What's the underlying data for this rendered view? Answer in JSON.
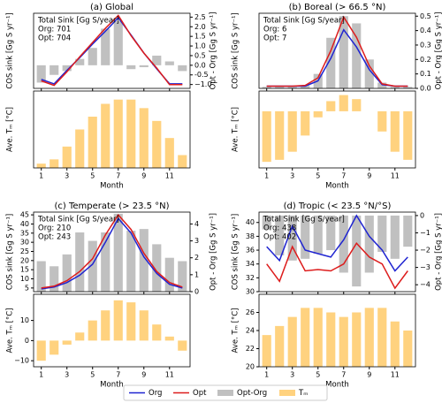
{
  "chart_data": [
    {
      "type": "combo",
      "title": "(a) Global",
      "annotations": [
        "Total Sink [Gg S/year]",
        "Org: 701",
        "Opt: 704"
      ],
      "x": [
        1,
        2,
        3,
        4,
        5,
        6,
        7,
        8,
        9,
        10,
        11,
        12
      ],
      "xlim": [
        0.4,
        12.6
      ],
      "xticks": [
        1,
        3,
        5,
        7,
        9,
        11
      ],
      "ylabel": "COS sink [Gg S yr⁻¹]",
      "y2label": "Opt - Org [Gg S yr⁻¹]",
      "ylim": [
        0,
        100
      ],
      "yticks": [],
      "y2lim": [
        -1.2,
        2.7
      ],
      "y2ticks": [
        {
          "value": -1,
          "label": "−1.0"
        },
        -0.5,
        {
          "value": 0,
          "label": "0.0"
        },
        0.5,
        {
          "value": 1,
          "label": "1.0"
        },
        1.5,
        {
          "value": 2,
          "label": "2.0"
        },
        2.5
      ],
      "series": [
        {
          "name": "Opt-Org",
          "kind": "bar",
          "axis": "y2",
          "color": "#c0c0c0",
          "values": [
            -0.9,
            -0.5,
            -0.3,
            0.33,
            0.9,
            1.9,
            2.3,
            -0.2,
            -0.1,
            0.5,
            0.2,
            -0.3
          ]
        },
        {
          "name": "Org",
          "kind": "line",
          "color": "#1f24d1",
          "values": [
            12,
            6,
            24,
            41,
            59,
            76,
            94,
            71,
            47,
            26,
            6,
            6
          ]
        },
        {
          "name": "Opt",
          "kind": "line",
          "color": "#dd1c1c",
          "values": [
            10,
            4,
            22,
            42,
            61,
            80,
            97,
            70,
            47,
            27,
            5,
            5
          ]
        }
      ],
      "lower": {
        "type": "bar",
        "ylabel": "Ave. Tₘ [°C]",
        "xlabel": "Month",
        "ylim": [
          0,
          18
        ],
        "yticks": [],
        "series": [
          {
            "name": "Tₘ",
            "color": "#ffd27f",
            "values": [
              1,
              2,
              5,
              9,
              12,
              15,
              16,
              16,
              14,
              11,
              7,
              3
            ]
          }
        ]
      }
    },
    {
      "type": "combo",
      "title": "(b) Boreal (> 66.5 °N)",
      "annotations": [
        "Total Sink [Gg S/year]",
        "Org: 6",
        "Opt: 7"
      ],
      "x": [
        1,
        2,
        3,
        4,
        5,
        6,
        7,
        8,
        9,
        10,
        11,
        12
      ],
      "xlim": [
        0.4,
        12.6
      ],
      "xticks": [
        1,
        3,
        5,
        7,
        9,
        11
      ],
      "ylabel": "COS sink [Gg S yr⁻¹]",
      "y2label": "Opt - Org [Gg S yr⁻¹]",
      "ylim": [
        0,
        100
      ],
      "yticks": [],
      "y2lim": [
        0,
        0.52
      ],
      "y2ticks": [
        {
          "value": 0,
          "label": "0.0"
        },
        0.1,
        0.2,
        0.3,
        0.4,
        0.5
      ],
      "series": [
        {
          "kind": "bar",
          "axis": "y2",
          "color": "#c0c0c0",
          "values": [
            0.01,
            0.01,
            0.01,
            0.02,
            0.1,
            0.35,
            0.5,
            0.45,
            0.2,
            0.04,
            0.01,
            0.01
          ]
        },
        {
          "kind": "line",
          "color": "#1f24d1",
          "values": [
            3,
            3,
            3,
            3,
            10,
            40,
            78,
            55,
            25,
            5,
            3,
            3
          ]
        },
        {
          "kind": "line",
          "color": "#dd1c1c",
          "values": [
            3,
            3,
            3,
            4,
            14,
            50,
            95,
            68,
            30,
            6,
            3,
            3
          ]
        }
      ],
      "lower": {
        "type": "bar",
        "ylabel": "Ave. Tₘ [°C]",
        "xlabel": "Month",
        "ylim": [
          -28,
          10
        ],
        "yticks": [],
        "series": [
          {
            "color": "#ffd27f",
            "values": [
              -25,
              -24,
              -20,
              -12,
              -3,
              5,
              8,
              6,
              0,
              -10,
              -20,
              -24
            ]
          }
        ]
      }
    },
    {
      "type": "combo",
      "title": "(c) Temperate (> 23.5 °N)",
      "annotations": [
        "Total Sink [Gg S/year]",
        "Org: 210",
        "Opt: 243"
      ],
      "x": [
        1,
        2,
        3,
        4,
        5,
        6,
        7,
        8,
        9,
        10,
        11,
        12
      ],
      "xlim": [
        0.4,
        12.6
      ],
      "xticks": [
        1,
        3,
        5,
        7,
        9,
        11
      ],
      "ylabel": "COS sink [Gg S yr⁻¹]",
      "y2label": "Opt - Org [Gg S yr⁻¹]",
      "ylim": [
        3,
        46.5
      ],
      "yticks": [
        5,
        10,
        15,
        20,
        25,
        30,
        35,
        40,
        45
      ],
      "y2lim": [
        0,
        4.7
      ],
      "y2ticks": [
        0,
        1,
        2,
        3,
        4
      ],
      "series": [
        {
          "kind": "bar",
          "axis": "y2",
          "color": "#c0c0c0",
          "values": [
            1.8,
            1.5,
            2.2,
            3.5,
            3.0,
            3.5,
            4.6,
            3.6,
            3.7,
            2.8,
            2.0,
            1.8
          ]
        },
        {
          "kind": "line",
          "color": "#1f24d1",
          "values": [
            4.5,
            5.5,
            8,
            12,
            18,
            30,
            43,
            35,
            22,
            13,
            7,
            5
          ]
        },
        {
          "kind": "line",
          "color": "#dd1c1c",
          "values": [
            5,
            6,
            9,
            14,
            21,
            34,
            45,
            37,
            24,
            14,
            8,
            5.5
          ]
        }
      ],
      "lower": {
        "type": "bar",
        "ylabel": "Ave. Tₘ [°C]",
        "xlabel": "Month",
        "ylim": [
          -13,
          23
        ],
        "yticks": [
          {
            "value": -10,
            "label": "−10"
          },
          0,
          10
        ],
        "series": [
          {
            "color": "#ffd27f",
            "values": [
              -10,
              -7,
              -2,
              4,
              10,
              15,
              20,
              19,
              15,
              8,
              2,
              -5
            ]
          }
        ]
      }
    },
    {
      "type": "combo",
      "title": "(d) Tropic (< 23.5 °N/°S)",
      "annotations": [
        "Total Sink [Gg S/year]",
        "Org: 438",
        "Opt: 402"
      ],
      "x": [
        1,
        2,
        3,
        4,
        5,
        6,
        7,
        8,
        9,
        10,
        11,
        12
      ],
      "xlim": [
        0.4,
        12.6
      ],
      "xticks": [
        1,
        3,
        5,
        7,
        9,
        11
      ],
      "ylabel": "COS sink [Gg S yr⁻¹]",
      "y2label": "Opt - Org [Gg S yr⁻¹]",
      "ylim": [
        30,
        41.5
      ],
      "yticks": [
        30,
        32,
        34,
        36,
        38,
        40
      ],
      "y2lim": [
        -4.4,
        0.2
      ],
      "y2ticks": [
        {
          "value": -4,
          "label": "−4"
        },
        {
          "value": -3,
          "label": "−3"
        },
        {
          "value": -2,
          "label": "−2"
        },
        {
          "value": -1,
          "label": "−1"
        },
        0
      ],
      "series": [
        {
          "kind": "bar",
          "axis": "y2",
          "color": "#c0c0c0",
          "values": [
            -0.8,
            -2.3,
            -2.6,
            -2.5,
            -2.2,
            -2.0,
            -3.3,
            -4.1,
            -3.3,
            -2.1,
            -2.5,
            -1.8
          ]
        },
        {
          "kind": "line",
          "color": "#1f24d1",
          "values": [
            36.5,
            34.5,
            39.5,
            36,
            35.5,
            35,
            37.5,
            41,
            38,
            36,
            33,
            35
          ]
        },
        {
          "kind": "line",
          "color": "#dd1c1c",
          "values": [
            34,
            31.5,
            36.5,
            33,
            33.2,
            33,
            34,
            37,
            35,
            34,
            30.5,
            33
          ]
        }
      ],
      "lower": {
        "type": "bar",
        "ylabel": "Ave. Tₘ [°C]",
        "xlabel": "Month",
        "ylim": [
          20,
          28
        ],
        "yticks": [
          20,
          22,
          24,
          26
        ],
        "series": [
          {
            "color": "#ffd27f",
            "values": [
              23.5,
              24.5,
              25.5,
              26.5,
              26.5,
              26,
              25.5,
              26,
              26.5,
              26.5,
              25,
              24
            ]
          }
        ]
      }
    }
  ]
}
